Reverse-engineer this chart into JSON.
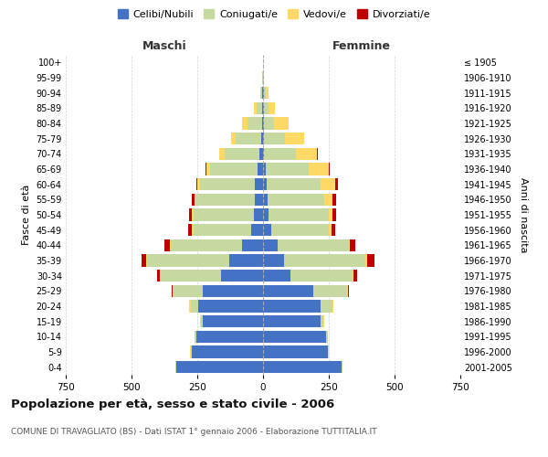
{
  "age_groups": [
    "0-4",
    "5-9",
    "10-14",
    "15-19",
    "20-24",
    "25-29",
    "30-34",
    "35-39",
    "40-44",
    "45-49",
    "50-54",
    "55-59",
    "60-64",
    "65-69",
    "70-74",
    "75-79",
    "80-84",
    "85-89",
    "90-94",
    "95-99",
    "100+"
  ],
  "birth_years": [
    "2001-2005",
    "1996-2000",
    "1991-1995",
    "1986-1990",
    "1981-1985",
    "1976-1980",
    "1971-1975",
    "1966-1970",
    "1961-1965",
    "1956-1960",
    "1951-1955",
    "1946-1950",
    "1941-1945",
    "1936-1940",
    "1931-1935",
    "1926-1930",
    "1921-1925",
    "1916-1920",
    "1911-1915",
    "1906-1910",
    "≤ 1905"
  ],
  "males": {
    "celibi": [
      330,
      270,
      255,
      230,
      245,
      230,
      160,
      130,
      80,
      45,
      35,
      32,
      30,
      20,
      15,
      8,
      5,
      5,
      2,
      1,
      0
    ],
    "coniugati": [
      3,
      5,
      5,
      5,
      30,
      110,
      230,
      310,
      270,
      220,
      230,
      225,
      210,
      180,
      130,
      95,
      55,
      20,
      8,
      2,
      0
    ],
    "vedovi": [
      1,
      2,
      2,
      3,
      5,
      5,
      2,
      3,
      5,
      5,
      5,
      5,
      10,
      15,
      20,
      20,
      20,
      8,
      2,
      0,
      0
    ],
    "divorziati": [
      0,
      0,
      0,
      0,
      1,
      2,
      10,
      20,
      20,
      15,
      10,
      8,
      5,
      3,
      2,
      0,
      0,
      0,
      0,
      0,
      0
    ]
  },
  "females": {
    "nubili": [
      300,
      245,
      240,
      220,
      220,
      190,
      105,
      80,
      55,
      30,
      20,
      18,
      15,
      10,
      5,
      5,
      3,
      2,
      2,
      1,
      0
    ],
    "coniugate": [
      2,
      3,
      5,
      10,
      45,
      130,
      235,
      310,
      270,
      220,
      230,
      215,
      205,
      165,
      120,
      80,
      40,
      18,
      8,
      2,
      0
    ],
    "vedove": [
      0,
      1,
      1,
      1,
      2,
      3,
      3,
      5,
      5,
      10,
      15,
      30,
      55,
      75,
      80,
      70,
      55,
      25,
      10,
      2,
      0
    ],
    "divorziate": [
      0,
      0,
      0,
      0,
      1,
      3,
      15,
      30,
      20,
      15,
      12,
      15,
      8,
      3,
      2,
      1,
      0,
      0,
      0,
      0,
      0
    ]
  },
  "colors": {
    "celibi_nubili": "#4472C4",
    "coniugati": "#C5D9A0",
    "vedovi": "#FFD966",
    "divorziati": "#C00000"
  },
  "xlim": 750,
  "title": "Popolazione per età, sesso e stato civile - 2006",
  "subtitle": "COMUNE DI TRAVAGLIATO (BS) - Dati ISTAT 1° gennaio 2006 - Elaborazione TUTTITALIA.IT",
  "xlabel_left": "Maschi",
  "xlabel_right": "Femmine",
  "ylabel_left": "Fasce di età",
  "ylabel_right": "Anni di nascita",
  "legend_labels": [
    "Celibi/Nubili",
    "Coniugati/e",
    "Vedovi/e",
    "Divorziati/e"
  ],
  "bg_color": "#ffffff",
  "grid_color": "#cccccc"
}
